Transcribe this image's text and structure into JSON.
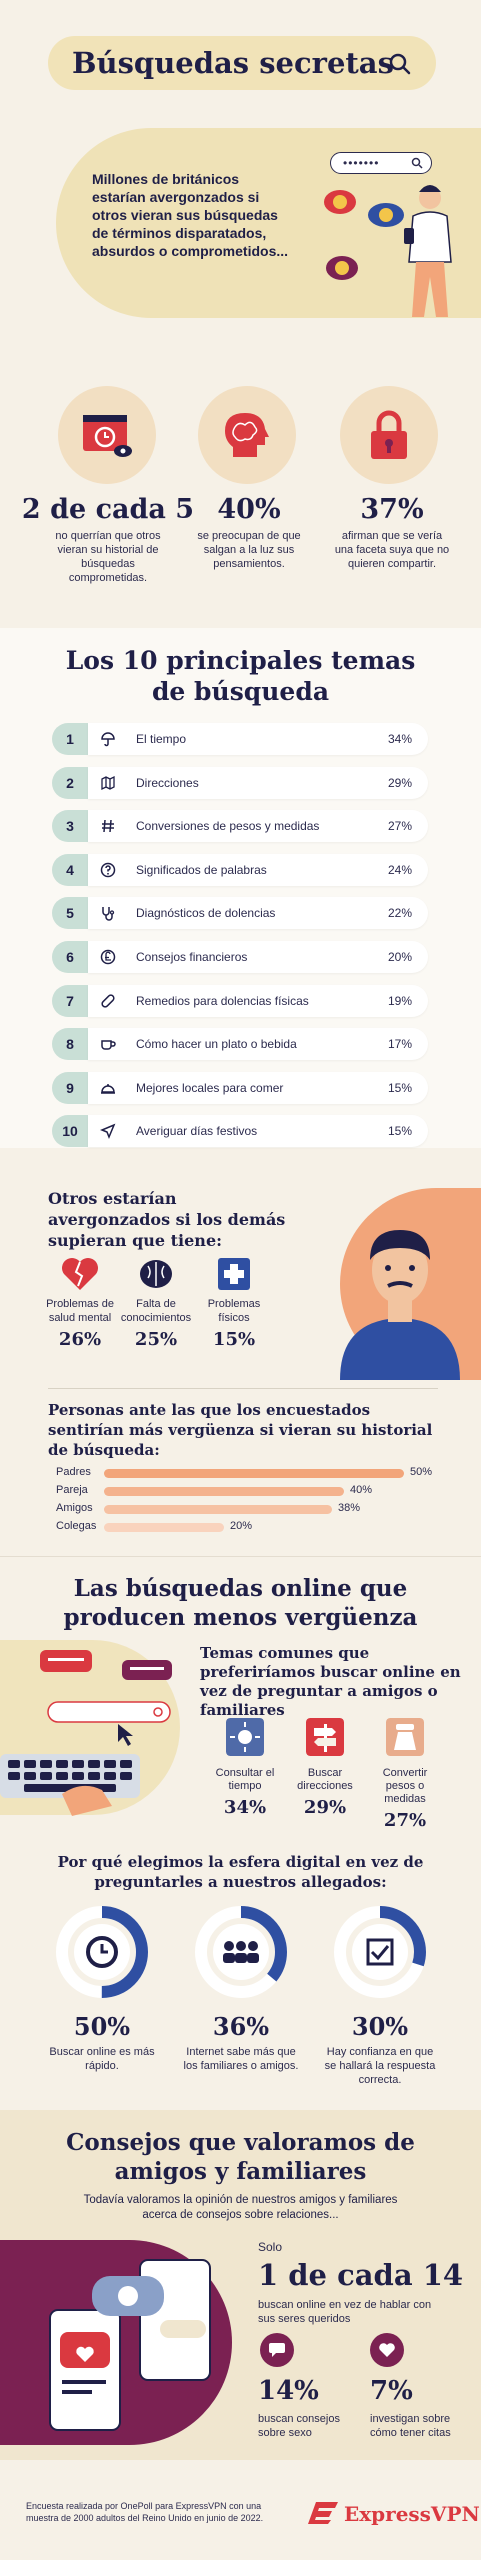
{
  "header": {
    "title": "Búsquedas secretas",
    "intro": "Millones de británicos estarían avergonzados si otros vieran sus búsquedas de términos disparatados, absurdos o comprometidos...",
    "password": "•••••••"
  },
  "stats": [
    {
      "big": "2 de cada 5",
      "text": "no querrían que otros vieran su historial de búsquedas comprometidas."
    },
    {
      "big": "40%",
      "text": "se preocupan de que salgan a la luz sus pensamientos."
    },
    {
      "big": "37%",
      "text": "afirman que se vería una faceta suya que no quieren compartir."
    }
  ],
  "top10": {
    "title": "Los 10 principales temas de búsqueda",
    "rows": [
      {
        "n": "1",
        "label": "El tiempo",
        "pct": "34%",
        "icon": "umbrella-icon"
      },
      {
        "n": "2",
        "label": "Direcciones",
        "pct": "29%",
        "icon": "map-icon"
      },
      {
        "n": "3",
        "label": "Conversiones de pesos y medidas",
        "pct": "27%",
        "icon": "hash-icon"
      },
      {
        "n": "4",
        "label": "Significados de palabras",
        "pct": "24%",
        "icon": "question-icon"
      },
      {
        "n": "5",
        "label": "Diagnósticos de dolencias",
        "pct": "22%",
        "icon": "stethoscope-icon"
      },
      {
        "n": "6",
        "label": "Consejos financieros",
        "pct": "20%",
        "icon": "pound-icon"
      },
      {
        "n": "7",
        "label": "Remedios para dolencias físicas",
        "pct": "19%",
        "icon": "bandage-icon"
      },
      {
        "n": "8",
        "label": "Cómo hacer un plato o bebida",
        "pct": "17%",
        "icon": "cup-icon"
      },
      {
        "n": "9",
        "label": "Mejores locales para comer",
        "pct": "15%",
        "icon": "cloche-icon"
      },
      {
        "n": "10",
        "label": "Averiguar días festivos",
        "pct": "15%",
        "icon": "plane-icon"
      }
    ]
  },
  "embarrassed": {
    "title": "Otros estarían avergonzados si los demás supieran que tiene:",
    "items": [
      {
        "name": "Problemas de salud mental",
        "pct": "26%"
      },
      {
        "name": "Falta de conocimientos",
        "pct": "25%"
      },
      {
        "name": "Problemas físicos",
        "pct": "15%"
      }
    ]
  },
  "people": {
    "title": "Personas ante las que los encuestados sentirían más vergüenza si vieran su historial de búsqueda:",
    "bars": [
      {
        "label": "Padres",
        "value": 50,
        "text": "50%"
      },
      {
        "label": "Pareja",
        "value": 40,
        "text": "40%"
      },
      {
        "label": "Amigos",
        "value": 38,
        "text": "38%"
      },
      {
        "label": "Colegas",
        "value": 20,
        "text": "20%"
      }
    ]
  },
  "online": {
    "title": "Las búsquedas online que producen menos vergüenza",
    "common_title": "Temas comunes que preferiríamos buscar online en vez de preguntar a amigos o familiares",
    "options": [
      {
        "name": "Consultar el tiempo",
        "pct": "34%"
      },
      {
        "name": "Buscar direcciones",
        "pct": "29%"
      },
      {
        "name": "Convertir pesos o medidas",
        "pct": "27%"
      }
    ],
    "why_title": "Por qué elegimos la esfera digital en vez de preguntarles a nuestros allegados:",
    "why": [
      {
        "pct": "50%",
        "value": 50,
        "text": "Buscar online es más rápido."
      },
      {
        "pct": "36%",
        "value": 36,
        "text": "Internet sabe más que los familiares o amigos."
      },
      {
        "pct": "30%",
        "value": 30,
        "text": "Hay confianza en que se hallará la respuesta correcta."
      }
    ]
  },
  "advice": {
    "title": "Consejos que valoramos de amigos y familiares",
    "sub": "Todavía valoramos la opinión de nuestros amigos y familiares acerca de consejos sobre relaciones...",
    "solo": "Solo",
    "one_in": "1 de cada 14",
    "one_in_text": "buscan online en vez de hablar con sus seres queridos",
    "items": [
      {
        "pct": "14%",
        "text": "buscan consejos sobre sexo"
      },
      {
        "pct": "7%",
        "text": "investigan sobre cómo tener citas"
      }
    ]
  },
  "footer": {
    "text": "Encuesta realizada por OnePoll para ExpressVPN con una muestra de 2000 adultos del Reino Unido en junio de 2022.",
    "brand": "ExpressVPN"
  },
  "colors": {
    "navy": "#1f1f47",
    "cream": "#f1e3b8",
    "mint": "#c9dfd6",
    "peach": "#f2a57a",
    "plum": "#7b2152",
    "red": "#da3940",
    "bar": "#f2a57a",
    "ring": "#2f4fa2"
  }
}
